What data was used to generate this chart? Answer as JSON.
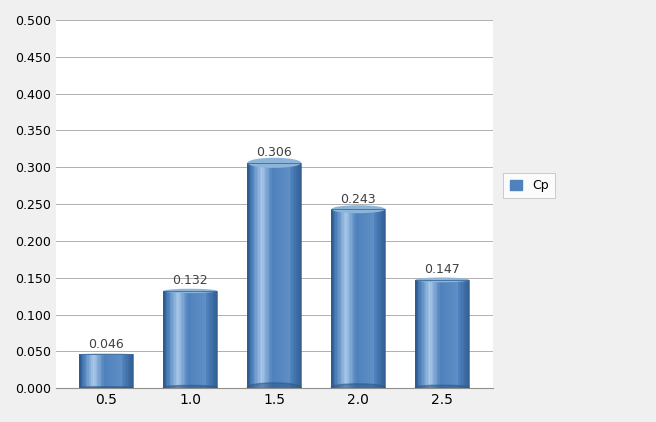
{
  "categories": [
    "0.5",
    "1.0",
    "1.5",
    "2.0",
    "2.5"
  ],
  "x_values": [
    0.5,
    1.0,
    1.5,
    2.0,
    2.5
  ],
  "values": [
    0.046,
    0.132,
    0.306,
    0.243,
    0.147
  ],
  "bar_color_main": "#4F81BD",
  "bar_color_dark": "#2E5C8E",
  "bar_color_light": "#8DB4D9",
  "bar_color_highlight": "#A8C8E8",
  "ylim": [
    0,
    0.5
  ],
  "yticks": [
    0.0,
    0.05,
    0.1,
    0.15,
    0.2,
    0.25,
    0.3,
    0.35,
    0.4,
    0.45,
    0.5
  ],
  "legend_label": "Cp",
  "legend_color": "#4F81BD",
  "background_color": "#F0F0F0",
  "plot_bg_color": "#FFFFFF",
  "grid_color": "#B0B0B0",
  "label_color": "#404040",
  "bar_width": 0.32,
  "n_gradient_strips": 40
}
